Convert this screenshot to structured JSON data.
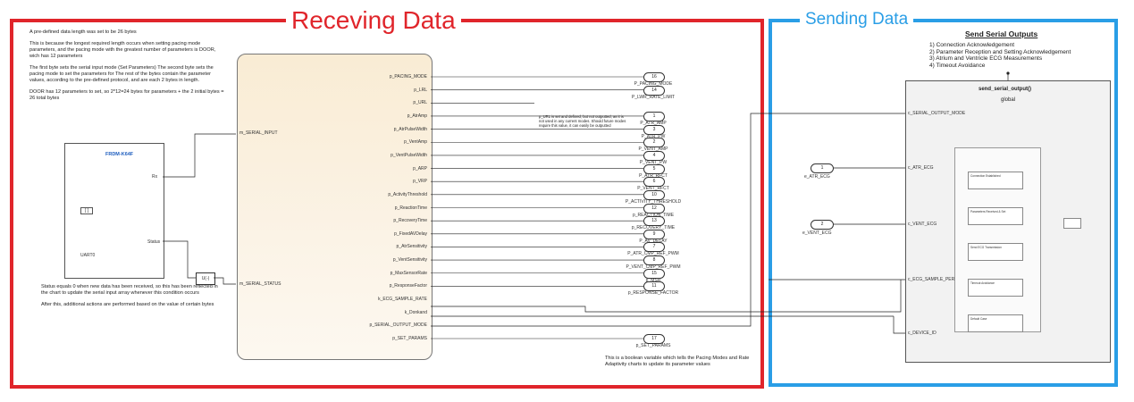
{
  "titles": {
    "receiving": "Receving Data",
    "sending": "Sending Data"
  },
  "left_notes": [
    "A pre-defined data length was set to be 26 bytes",
    "This is because the longest required length occurs when setting pacing mode parameters, and the pacing mode with the greatest number of parameters is DOOR, wich has 12 parameters",
    "The first byte sets the serial input mode (Set Parameters) The second byte sets the pacing mode to set the parameters for The rest of the bytes contain the parameter values, according to the pre-defined protocol, and are each 2 bytes in length.",
    "DOOR has 12 parameters to set, so 2*12=24 bytes for parameters + the 2 initial bytes = 26 total bytes"
  ],
  "status_notes": [
    "Status equals 0 when new data has been received, so this has been reflected in the chart to update the serial input array whenever this condition occurs",
    "After this, additional actions are performed based on the value of certain bytes"
  ],
  "frdm": {
    "title": "FRDM-K64F",
    "rx": "Rx",
    "status": "Status",
    "uart": "UART0",
    "tag": "[ ]"
  },
  "chart_inputs": [
    "m_SERIAL_INPUT",
    "m_SERIAL_STATUS"
  ],
  "unit_delay": "U(-)",
  "chart_outputs": [
    "p_PACING_MODE",
    "p_LRL",
    "p_URL",
    "p_AtrAmp",
    "p_AtrPulseWidth",
    "p_VentAmp",
    "p_VentPulseWidth",
    "p_ARP",
    "p_VRP",
    "p_ActivityThreshold",
    "p_ReactionTime",
    "p_RecoveryTime",
    "p_FixedAVDelay",
    "p_AtrSensitivity",
    "p_VentSensitivity",
    "p_MaxSensorRate",
    "p_ResponseFactor",
    "k_ECG_SAMPLE_RATE",
    "k_Donkand",
    "p_SERIAL_OUTPUT_MODE",
    "p_SET_PARAMS"
  ],
  "ports": [
    {
      "num": "16",
      "label": "P_PACING_MODE"
    },
    {
      "num": "14",
      "label": "P_LWR_RATE_LIMIT"
    },
    {
      "num": "1",
      "label": "P_ATR_AMP"
    },
    {
      "num": "3",
      "label": "P_ATR_PW"
    },
    {
      "num": "2",
      "label": "P_VENT_AMP"
    },
    {
      "num": "4",
      "label": "P_VENT_PW"
    },
    {
      "num": "5",
      "label": "P_ATR_RFCT"
    },
    {
      "num": "6",
      "label": "P_VENT_RFCT"
    },
    {
      "num": "10",
      "label": "P_ACTIVITY_THRESHOLD"
    },
    {
      "num": "12",
      "label": "p_REACTION_TIME"
    },
    {
      "num": "13",
      "label": "p_RECOVERY_TIME"
    },
    {
      "num": "9",
      "label": "P_AV_DELAY"
    },
    {
      "num": "7",
      "label": "P_ATR_CMP_REF_PWM"
    },
    {
      "num": "8",
      "label": "P_VENT_CMP_REF_PWM"
    },
    {
      "num": "15",
      "label": "p_MSR"
    },
    {
      "num": "11",
      "label": "p_RESPONSE_FACTOR"
    },
    {
      "num": "17",
      "label": "p_SET_PARAMS"
    }
  ],
  "url_note": "p_URL is set and defined, but not outputted, as it is not used in any current modes. Should future modes require this value, it can easily be outputted",
  "set_params_note": "This is a boolean variable which tells the Pacing Modes and Rate Adaptivity charts to update its parameter values",
  "sending": {
    "heading": "Send Serial Outputs",
    "items": [
      "1) Connection Acknowledgement",
      "2) Parameter Reception and Setting Acknowledgement",
      "3) Atrium and Ventricle ECG Measurements",
      "4) Timeout Avoidance"
    ],
    "func_name": "send_serial_output()",
    "func_scope": "global",
    "func_inputs": [
      "c_SERIAL_OUTPUT_MODE",
      "c_ATR_ECG",
      "c_VENT_ECG",
      "c_ECG_SAMPLE_PERIOD",
      "c_DEVICE_ID"
    ],
    "ecg_ports": [
      {
        "num": "1",
        "label": "e_ATR_ECG"
      },
      {
        "num": "2",
        "label": "e_VENT_ECG"
      }
    ],
    "inner_states": [
      "Connection Established",
      "Parameters Received & Set",
      "Send ECG Transmission",
      "Timeout Avoidance",
      "Default Case"
    ]
  }
}
